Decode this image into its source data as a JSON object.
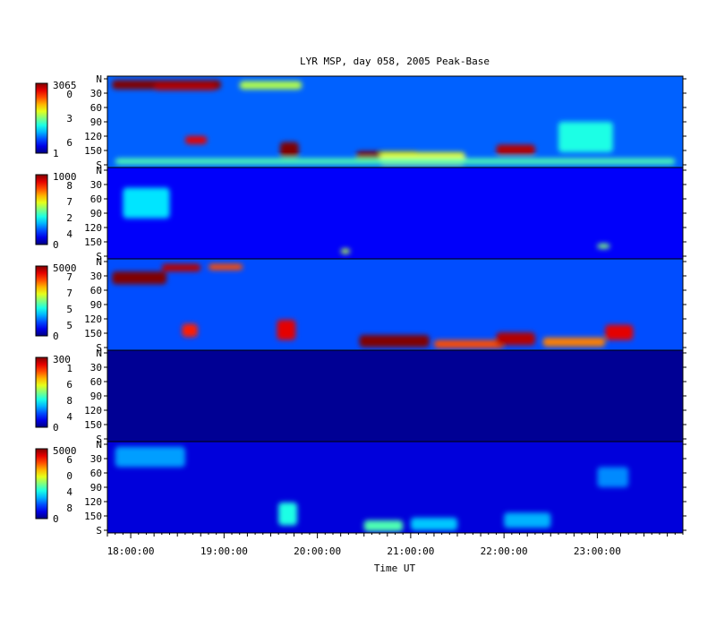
{
  "chart_data": {
    "type": "heatmap",
    "title": "LYR MSP, day 058, 2005 Peak-Base",
    "xlabel": "Time UT",
    "xlim": [
      "17:45:00",
      "23:55:00"
    ],
    "xticks": [
      "18:00:00",
      "19:00:00",
      "20:00:00",
      "21:00:00",
      "22:00:00",
      "23:00:00"
    ],
    "ylim": [
      0,
      180
    ],
    "yticks": [
      "N",
      "30",
      "60",
      "90",
      "120",
      "150",
      "S"
    ],
    "colormap": "jet",
    "panels": [
      {
        "colorbar_max": "3065",
        "colorbar_min": "1",
        "colorbar_digits": [
          "0",
          "3",
          "6"
        ],
        "background_level": 0.22,
        "features": [
          {
            "t": "17:48:00",
            "dt": 70,
            "y": 8,
            "dy": 18,
            "level": 1.0
          },
          {
            "t": "18:15:00",
            "dt": 40,
            "y": 14,
            "dy": 14,
            "level": 0.95
          },
          {
            "t": "19:10:00",
            "dt": 40,
            "y": 10,
            "dy": 16,
            "level": 0.55
          },
          {
            "t": "18:35:00",
            "dt": 14,
            "y": 118,
            "dy": 16,
            "level": 0.9
          },
          {
            "t": "19:36:00",
            "dt": 12,
            "y": 130,
            "dy": 30,
            "level": 1.0
          },
          {
            "t": "20:25:00",
            "dt": 40,
            "y": 148,
            "dy": 22,
            "level": 1.0
          },
          {
            "t": "20:40:00",
            "dt": 55,
            "y": 150,
            "dy": 26,
            "level": 0.6
          },
          {
            "t": "21:55:00",
            "dt": 25,
            "y": 135,
            "dy": 20,
            "level": 0.95
          },
          {
            "t": "17:50:00",
            "dt": 360,
            "y": 162,
            "dy": 12,
            "level": 0.45
          },
          {
            "t": "22:35:00",
            "dt": 35,
            "y": 90,
            "dy": 60,
            "level": 0.4
          }
        ]
      },
      {
        "colorbar_max": "1000",
        "colorbar_min": "0",
        "colorbar_digits": [
          "8",
          "7",
          "2",
          "4"
        ],
        "background_level": 0.12,
        "features": [
          {
            "t": "17:55:00",
            "dt": 30,
            "y": 40,
            "dy": 60,
            "level": 0.35
          },
          {
            "t": "20:15:00",
            "dt": 6,
            "y": 160,
            "dy": 10,
            "level": 0.55
          },
          {
            "t": "23:00:00",
            "dt": 8,
            "y": 150,
            "dy": 10,
            "level": 0.5
          }
        ]
      },
      {
        "colorbar_max": "5000",
        "colorbar_min": "0",
        "colorbar_digits": [
          "7",
          "7",
          "5",
          "5"
        ],
        "background_level": 0.2,
        "features": [
          {
            "t": "17:48:00",
            "dt": 35,
            "y": 25,
            "dy": 25,
            "level": 1.0
          },
          {
            "t": "18:20:00",
            "dt": 25,
            "y": 10,
            "dy": 15,
            "level": 0.95
          },
          {
            "t": "18:50:00",
            "dt": 22,
            "y": 10,
            "dy": 12,
            "level": 0.8
          },
          {
            "t": "18:33:00",
            "dt": 10,
            "y": 128,
            "dy": 26,
            "level": 0.85
          },
          {
            "t": "19:34:00",
            "dt": 12,
            "y": 120,
            "dy": 40,
            "level": 0.9
          },
          {
            "t": "20:27:00",
            "dt": 45,
            "y": 150,
            "dy": 24,
            "level": 1.0
          },
          {
            "t": "21:15:00",
            "dt": 45,
            "y": 160,
            "dy": 16,
            "level": 0.8
          },
          {
            "t": "21:55:00",
            "dt": 25,
            "y": 145,
            "dy": 25,
            "level": 0.95
          },
          {
            "t": "22:25:00",
            "dt": 40,
            "y": 155,
            "dy": 18,
            "level": 0.75
          },
          {
            "t": "23:05:00",
            "dt": 18,
            "y": 130,
            "dy": 30,
            "level": 0.9
          }
        ]
      },
      {
        "colorbar_max": "300",
        "colorbar_min": "0",
        "colorbar_digits": [
          "1",
          "6",
          "8",
          "4"
        ],
        "background_level": 0.02,
        "features": []
      },
      {
        "colorbar_max": "5000",
        "colorbar_min": "0",
        "colorbar_digits": [
          "6",
          "0",
          "4",
          "8"
        ],
        "background_level": 0.09,
        "features": [
          {
            "t": "17:50:00",
            "dt": 45,
            "y": 10,
            "dy": 40,
            "level": 0.28
          },
          {
            "t": "19:35:00",
            "dt": 12,
            "y": 120,
            "dy": 45,
            "level": 0.4
          },
          {
            "t": "20:30:00",
            "dt": 25,
            "y": 155,
            "dy": 22,
            "level": 0.45
          },
          {
            "t": "21:00:00",
            "dt": 30,
            "y": 150,
            "dy": 25,
            "level": 0.32
          },
          {
            "t": "22:00:00",
            "dt": 30,
            "y": 140,
            "dy": 30,
            "level": 0.3
          },
          {
            "t": "23:00:00",
            "dt": 20,
            "y": 50,
            "dy": 40,
            "level": 0.26
          }
        ]
      }
    ]
  }
}
